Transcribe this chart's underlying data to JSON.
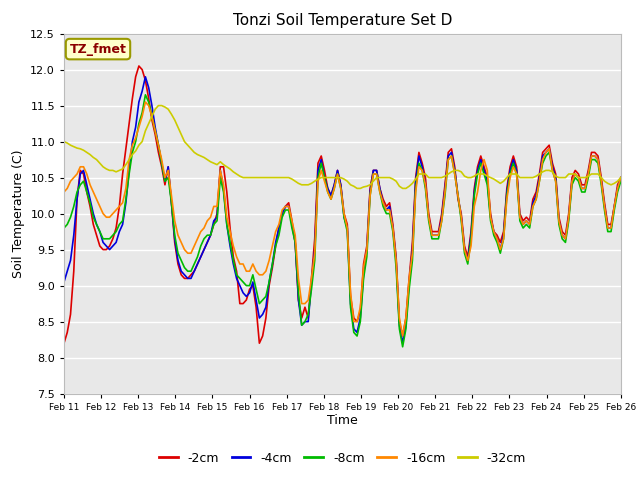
{
  "title": "Tonzi Soil Temperature Set D",
  "xlabel": "Time",
  "ylabel": "Soil Temperature (C)",
  "ylim": [
    7.5,
    12.5
  ],
  "yticks": [
    7.5,
    8.0,
    8.5,
    9.0,
    9.5,
    10.0,
    10.5,
    11.0,
    11.5,
    12.0,
    12.5
  ],
  "annotation_text": "TZ_fmet",
  "legend_entries": [
    "-2cm",
    "-4cm",
    "-8cm",
    "-16cm",
    "-32cm"
  ],
  "line_colors": [
    "#dd0000",
    "#0000dd",
    "#00bb00",
    "#ff8800",
    "#cccc00"
  ],
  "background_color": "#e8e8e8",
  "x_tick_labels": [
    "Feb 11",
    "Feb 12",
    "Feb 13",
    "Feb 14",
    "Feb 15",
    "Feb 16",
    "Feb 17",
    "Feb 18",
    "Feb 19",
    "Feb 20",
    "Feb 21",
    "Feb 22",
    "Feb 23",
    "Feb 24",
    "Feb 25",
    "Feb 26"
  ],
  "n_days": 15,
  "series": {
    "d2cm": [
      8.2,
      8.35,
      8.6,
      9.2,
      10.2,
      10.6,
      10.55,
      10.3,
      10.1,
      9.85,
      9.7,
      9.55,
      9.5,
      9.5,
      9.55,
      9.65,
      9.8,
      10.1,
      10.55,
      10.9,
      11.25,
      11.6,
      11.9,
      12.05,
      12.0,
      11.85,
      11.6,
      11.3,
      11.1,
      10.85,
      10.65,
      10.4,
      10.65,
      10.15,
      9.6,
      9.3,
      9.15,
      9.1,
      9.1,
      9.15,
      9.2,
      9.3,
      9.4,
      9.5,
      9.6,
      9.7,
      9.85,
      10.0,
      10.65,
      10.65,
      10.3,
      9.8,
      9.4,
      9.2,
      8.75,
      8.75,
      8.8,
      8.95,
      9.0,
      8.7,
      8.2,
      8.3,
      8.55,
      9.0,
      9.25,
      9.55,
      9.8,
      10.0,
      10.1,
      10.15,
      9.9,
      9.6,
      8.8,
      8.55,
      8.7,
      8.55,
      9.1,
      9.65,
      10.7,
      10.8,
      10.6,
      10.35,
      10.25,
      10.4,
      10.6,
      10.4,
      10.0,
      9.85,
      8.85,
      8.55,
      8.5,
      8.65,
      9.3,
      9.55,
      10.35,
      10.6,
      10.6,
      10.35,
      10.2,
      10.1,
      10.15,
      9.85,
      9.4,
      8.5,
      8.3,
      8.55,
      9.1,
      9.6,
      10.5,
      10.85,
      10.7,
      10.5,
      10.0,
      9.75,
      9.75,
      9.75,
      10.0,
      10.4,
      10.85,
      10.9,
      10.65,
      10.2,
      10.0,
      9.55,
      9.4,
      9.75,
      10.35,
      10.65,
      10.8,
      10.65,
      10.5,
      10.0,
      9.75,
      9.7,
      9.6,
      9.75,
      10.35,
      10.65,
      10.8,
      10.65,
      10.0,
      9.9,
      9.95,
      9.9,
      10.2,
      10.3,
      10.55,
      10.85,
      10.9,
      10.95,
      10.7,
      10.55,
      9.95,
      9.75,
      9.7,
      10.0,
      10.5,
      10.6,
      10.55,
      10.4,
      10.4,
      10.6,
      10.85,
      10.85,
      10.8,
      10.5,
      10.15,
      9.85,
      9.85,
      10.1,
      10.4,
      10.5
    ],
    "d4cm": [
      9.05,
      9.2,
      9.35,
      9.7,
      10.2,
      10.55,
      10.6,
      10.4,
      10.2,
      10.0,
      9.85,
      9.75,
      9.6,
      9.55,
      9.5,
      9.55,
      9.6,
      9.75,
      9.85,
      10.15,
      10.6,
      11.0,
      11.2,
      11.55,
      11.7,
      11.9,
      11.75,
      11.5,
      11.2,
      10.95,
      10.7,
      10.45,
      10.65,
      10.15,
      9.65,
      9.35,
      9.2,
      9.15,
      9.1,
      9.1,
      9.2,
      9.3,
      9.4,
      9.5,
      9.6,
      9.7,
      9.9,
      9.95,
      10.6,
      10.35,
      9.85,
      9.55,
      9.3,
      9.1,
      9.0,
      8.9,
      8.85,
      8.9,
      9.05,
      8.8,
      8.55,
      8.6,
      8.7,
      9.05,
      9.3,
      9.6,
      9.8,
      10.0,
      10.1,
      10.1,
      9.85,
      9.6,
      8.8,
      8.45,
      8.5,
      8.5,
      9.05,
      9.5,
      10.6,
      10.75,
      10.5,
      10.35,
      10.25,
      10.4,
      10.6,
      10.4,
      9.95,
      9.8,
      8.75,
      8.4,
      8.35,
      8.55,
      9.15,
      9.5,
      10.3,
      10.6,
      10.6,
      10.35,
      10.15,
      10.05,
      10.1,
      9.8,
      9.35,
      8.45,
      8.2,
      8.45,
      9.05,
      9.5,
      10.45,
      10.8,
      10.65,
      10.4,
      9.95,
      9.7,
      9.7,
      9.7,
      9.95,
      10.35,
      10.8,
      10.85,
      10.6,
      10.25,
      9.95,
      9.5,
      9.35,
      9.7,
      10.3,
      10.6,
      10.75,
      10.6,
      10.45,
      9.95,
      9.75,
      9.65,
      9.5,
      9.7,
      10.3,
      10.6,
      10.75,
      10.6,
      9.95,
      9.85,
      9.9,
      9.85,
      10.15,
      10.25,
      10.5,
      10.8,
      10.85,
      10.9,
      10.65,
      10.5,
      9.9,
      9.7,
      9.65,
      9.95,
      10.45,
      10.55,
      10.5,
      10.35,
      10.35,
      10.55,
      10.8,
      10.8,
      10.75,
      10.45,
      10.1,
      9.8,
      9.8,
      10.1,
      10.35,
      10.5
    ],
    "d8cm": [
      9.8,
      9.85,
      9.95,
      10.1,
      10.3,
      10.4,
      10.45,
      10.3,
      10.15,
      9.95,
      9.85,
      9.75,
      9.65,
      9.65,
      9.65,
      9.7,
      9.75,
      9.85,
      9.9,
      10.2,
      10.55,
      10.85,
      11.0,
      11.25,
      11.4,
      11.65,
      11.55,
      11.35,
      11.15,
      10.95,
      10.7,
      10.45,
      10.5,
      10.15,
      9.7,
      9.45,
      9.35,
      9.25,
      9.2,
      9.2,
      9.3,
      9.4,
      9.55,
      9.65,
      9.7,
      9.7,
      9.85,
      9.9,
      10.5,
      10.3,
      9.85,
      9.6,
      9.35,
      9.15,
      9.1,
      9.05,
      9.0,
      9.0,
      9.15,
      8.95,
      8.75,
      8.8,
      8.85,
      9.05,
      9.3,
      9.55,
      9.7,
      9.95,
      10.05,
      10.05,
      9.8,
      9.6,
      8.9,
      8.45,
      8.5,
      8.6,
      8.95,
      9.35,
      10.5,
      10.7,
      10.5,
      10.3,
      10.2,
      10.35,
      10.55,
      10.35,
      9.95,
      9.75,
      8.7,
      8.35,
      8.3,
      8.5,
      9.1,
      9.4,
      10.25,
      10.55,
      10.55,
      10.3,
      10.1,
      10.0,
      10.0,
      9.75,
      9.25,
      8.4,
      8.15,
      8.4,
      8.95,
      9.35,
      10.35,
      10.7,
      10.6,
      10.35,
      9.9,
      9.65,
      9.65,
      9.65,
      9.9,
      10.25,
      10.75,
      10.8,
      10.55,
      10.25,
      9.9,
      9.45,
      9.3,
      9.65,
      10.25,
      10.55,
      10.7,
      10.55,
      10.4,
      9.9,
      9.7,
      9.6,
      9.45,
      9.65,
      10.25,
      10.55,
      10.7,
      10.55,
      9.9,
      9.8,
      9.85,
      9.8,
      10.1,
      10.2,
      10.45,
      10.7,
      10.8,
      10.85,
      10.6,
      10.45,
      9.85,
      9.65,
      9.6,
      9.9,
      10.4,
      10.5,
      10.45,
      10.3,
      10.3,
      10.5,
      10.75,
      10.75,
      10.7,
      10.4,
      10.05,
      9.75,
      9.75,
      10.05,
      10.3,
      10.45
    ],
    "d16cm": [
      10.3,
      10.35,
      10.45,
      10.5,
      10.55,
      10.65,
      10.65,
      10.55,
      10.4,
      10.3,
      10.2,
      10.1,
      10.0,
      9.95,
      9.95,
      10.0,
      10.05,
      10.1,
      10.15,
      10.35,
      10.75,
      10.95,
      11.05,
      11.2,
      11.35,
      11.55,
      11.5,
      11.35,
      11.15,
      10.95,
      10.75,
      10.5,
      10.6,
      10.25,
      9.9,
      9.7,
      9.6,
      9.5,
      9.45,
      9.45,
      9.55,
      9.65,
      9.75,
      9.8,
      9.9,
      9.95,
      10.1,
      10.1,
      10.6,
      10.4,
      9.95,
      9.75,
      9.55,
      9.4,
      9.3,
      9.3,
      9.2,
      9.2,
      9.3,
      9.2,
      9.15,
      9.15,
      9.2,
      9.35,
      9.55,
      9.75,
      9.85,
      10.05,
      10.1,
      10.1,
      9.9,
      9.7,
      9.1,
      8.75,
      8.75,
      8.8,
      9.1,
      9.45,
      10.45,
      10.6,
      10.45,
      10.3,
      10.2,
      10.35,
      10.55,
      10.35,
      10.0,
      9.8,
      8.9,
      8.5,
      8.5,
      8.7,
      9.25,
      9.5,
      10.25,
      10.55,
      10.55,
      10.3,
      10.15,
      10.05,
      10.05,
      9.8,
      9.35,
      8.55,
      8.3,
      8.55,
      9.1,
      9.45,
      10.3,
      10.65,
      10.6,
      10.4,
      9.95,
      9.7,
      9.7,
      9.7,
      9.9,
      10.3,
      10.75,
      10.8,
      10.55,
      10.25,
      9.95,
      9.5,
      9.35,
      9.55,
      10.1,
      10.3,
      10.6,
      10.75,
      10.6,
      9.95,
      9.75,
      9.65,
      9.5,
      9.65,
      10.2,
      10.5,
      10.65,
      10.55,
      9.95,
      9.85,
      9.9,
      9.85,
      10.1,
      10.2,
      10.45,
      10.75,
      10.85,
      10.9,
      10.6,
      10.45,
      9.9,
      9.7,
      9.65,
      9.95,
      10.45,
      10.55,
      10.5,
      10.35,
      10.35,
      10.55,
      10.8,
      10.8,
      10.75,
      10.45,
      10.1,
      9.8,
      9.8,
      10.1,
      10.35,
      10.5
    ],
    "d32cm": [
      11.0,
      10.98,
      10.95,
      10.93,
      10.91,
      10.9,
      10.88,
      10.85,
      10.82,
      10.78,
      10.75,
      10.7,
      10.65,
      10.62,
      10.6,
      10.6,
      10.58,
      10.6,
      10.62,
      10.68,
      10.75,
      10.82,
      10.87,
      10.95,
      11.0,
      11.15,
      11.25,
      11.35,
      11.45,
      11.5,
      11.5,
      11.48,
      11.45,
      11.38,
      11.3,
      11.2,
      11.1,
      11.0,
      10.95,
      10.9,
      10.85,
      10.82,
      10.8,
      10.78,
      10.75,
      10.72,
      10.7,
      10.68,
      10.72,
      10.68,
      10.65,
      10.62,
      10.58,
      10.55,
      10.52,
      10.5,
      10.5,
      10.5,
      10.5,
      10.5,
      10.5,
      10.5,
      10.5,
      10.5,
      10.5,
      10.5,
      10.5,
      10.5,
      10.5,
      10.5,
      10.48,
      10.45,
      10.42,
      10.4,
      10.4,
      10.4,
      10.42,
      10.45,
      10.48,
      10.5,
      10.5,
      10.5,
      10.5,
      10.5,
      10.5,
      10.5,
      10.48,
      10.45,
      10.4,
      10.38,
      10.35,
      10.35,
      10.37,
      10.38,
      10.4,
      10.45,
      10.5,
      10.5,
      10.5,
      10.5,
      10.5,
      10.48,
      10.45,
      10.38,
      10.35,
      10.35,
      10.38,
      10.42,
      10.48,
      10.55,
      10.55,
      10.55,
      10.5,
      10.5,
      10.5,
      10.5,
      10.5,
      10.52,
      10.55,
      10.58,
      10.6,
      10.6,
      10.58,
      10.52,
      10.5,
      10.5,
      10.52,
      10.55,
      10.55,
      10.55,
      10.52,
      10.5,
      10.48,
      10.45,
      10.42,
      10.45,
      10.5,
      10.55,
      10.55,
      10.55,
      10.5,
      10.5,
      10.5,
      10.5,
      10.5,
      10.52,
      10.55,
      10.58,
      10.6,
      10.6,
      10.58,
      10.52,
      10.5,
      10.5,
      10.5,
      10.55,
      10.55,
      10.55,
      10.5,
      10.5,
      10.5,
      10.52,
      10.55,
      10.55,
      10.55,
      10.5,
      10.45,
      10.42,
      10.4,
      10.42,
      10.45,
      10.5
    ]
  }
}
